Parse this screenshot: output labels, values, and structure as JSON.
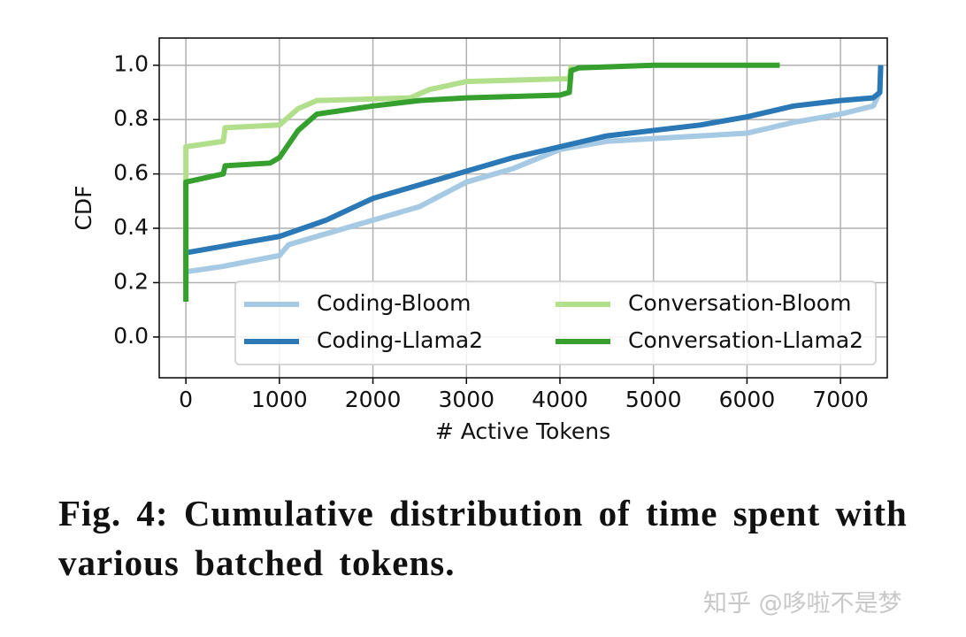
{
  "chart_data": {
    "type": "line",
    "xlabel": "# Active Tokens",
    "ylabel": "CDF",
    "xlim": [
      -285,
      7500
    ],
    "ylim": [
      -0.15,
      1.1
    ],
    "xticks": [
      0,
      1000,
      2000,
      3000,
      4000,
      5000,
      6000,
      7000
    ],
    "yticks": [
      {
        "value": 0,
        "label": "0.0"
      },
      0.2,
      0.4,
      0.6,
      0.8,
      {
        "value": 1,
        "label": "1.0"
      }
    ],
    "grid": true,
    "legend": "lower right",
    "legend_columns": 2,
    "series": [
      {
        "name": "Coding-Bloom",
        "color": "#a6cae3",
        "x": [
          0,
          0,
          400,
          1000,
          1100,
          1500,
          2000,
          2500,
          3000,
          3500,
          4000,
          4500,
          5000,
          5500,
          6000,
          6500,
          7000,
          7350,
          7420,
          7430
        ],
        "values": [
          0.2,
          0.24,
          0.26,
          0.3,
          0.34,
          0.38,
          0.43,
          0.48,
          0.57,
          0.62,
          0.69,
          0.72,
          0.73,
          0.74,
          0.75,
          0.79,
          0.82,
          0.85,
          0.9,
          1.0
        ]
      },
      {
        "name": "Coding-Llama2",
        "color": "#2a78b6",
        "x": [
          0,
          0,
          500,
          1000,
          1500,
          2000,
          2500,
          3000,
          3500,
          4000,
          4500,
          5000,
          5500,
          6000,
          6500,
          7000,
          7350,
          7420,
          7430
        ],
        "values": [
          0.3,
          0.31,
          0.34,
          0.37,
          0.43,
          0.51,
          0.56,
          0.61,
          0.66,
          0.7,
          0.74,
          0.76,
          0.78,
          0.81,
          0.85,
          0.87,
          0.88,
          0.9,
          1.0
        ]
      },
      {
        "name": "Conversation-Bloom",
        "color": "#b1df8b",
        "x": [
          0,
          0,
          400,
          420,
          1000,
          1200,
          1400,
          2400,
          2600,
          3000,
          4000,
          4100,
          4120
        ],
        "values": [
          0.2,
          0.7,
          0.72,
          0.77,
          0.78,
          0.84,
          0.87,
          0.88,
          0.91,
          0.94,
          0.95,
          0.95,
          1.0
        ]
      },
      {
        "name": "Conversation-Llama2",
        "color": "#35a02e",
        "x": [
          0,
          0,
          400,
          420,
          900,
          1000,
          1200,
          1400,
          2000,
          2500,
          3000,
          4000,
          4100,
          4120,
          4200,
          5000,
          6350
        ],
        "values": [
          0.13,
          0.57,
          0.6,
          0.63,
          0.64,
          0.66,
          0.76,
          0.82,
          0.85,
          0.87,
          0.88,
          0.89,
          0.9,
          0.98,
          0.99,
          1.0,
          1.0
        ]
      }
    ]
  },
  "caption": "Fig. 4: Cumulative distribution of time spent with various batched tokens.",
  "watermark": "知乎 @哆啦不是梦"
}
